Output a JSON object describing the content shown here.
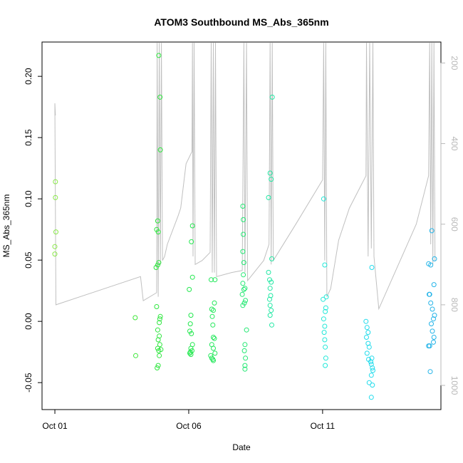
{
  "chart_data": {
    "type": "scatter",
    "title": "ATOM3 Southbound MS_Abs_365nm",
    "xlabel": "Date",
    "ylabel": "MS_Abs_365nm",
    "x_ticks": [
      "Oct 01",
      "Oct 06",
      "Oct 11"
    ],
    "y_ticks": [
      -0.05,
      0.0,
      0.05,
      0.1,
      0.15,
      0.2
    ],
    "y_range": [
      -0.072,
      0.228
    ],
    "x_range_days": [
      -0.48,
      14.42
    ],
    "y2_ticks": [
      200,
      400,
      600,
      800,
      1000
    ],
    "y2_range": [
      1060,
      148
    ],
    "colors": {
      "axis": "#000000",
      "track": "#c0c0c0",
      "axis2": "#b8b8b8"
    },
    "points": [
      {
        "x": 0.02,
        "y": 0.114,
        "color": "#8be94a"
      },
      {
        "x": 0.02,
        "y": 0.101,
        "color": "#8be94a"
      },
      {
        "x": 0.04,
        "y": 0.073,
        "color": "#8be94a"
      },
      {
        "x": 0.0,
        "y": 0.061,
        "color": "#8be94a"
      },
      {
        "x": 0.0,
        "y": 0.055,
        "color": "#8be94a"
      },
      {
        "x": 3.0,
        "y": 0.003,
        "color": "#3ee63a"
      },
      {
        "x": 3.02,
        "y": -0.028,
        "color": "#3ee63a"
      },
      {
        "x": 3.88,
        "y": 0.217,
        "color": "#2fe63f"
      },
      {
        "x": 3.93,
        "y": 0.183,
        "color": "#2fe63f"
      },
      {
        "x": 3.94,
        "y": 0.14,
        "color": "#2fe63f"
      },
      {
        "x": 3.84,
        "y": 0.082,
        "color": "#2fe63f"
      },
      {
        "x": 3.8,
        "y": 0.075,
        "color": "#2fe63f"
      },
      {
        "x": 3.86,
        "y": 0.073,
        "color": "#2fe63f"
      },
      {
        "x": 3.88,
        "y": 0.048,
        "color": "#2fe63f"
      },
      {
        "x": 3.84,
        "y": 0.046,
        "color": "#2fe63f"
      },
      {
        "x": 3.78,
        "y": 0.044,
        "color": "#2fe63f"
      },
      {
        "x": 3.8,
        "y": 0.012,
        "color": "#2fe63f"
      },
      {
        "x": 3.94,
        "y": 0.004,
        "color": "#2fe63f"
      },
      {
        "x": 3.92,
        "y": 0.002,
        "color": "#2fe63f"
      },
      {
        "x": 3.9,
        "y": -0.001,
        "color": "#2fe63f"
      },
      {
        "x": 3.84,
        "y": -0.007,
        "color": "#2fe63f"
      },
      {
        "x": 3.9,
        "y": -0.012,
        "color": "#2fe63f"
      },
      {
        "x": 3.86,
        "y": -0.015,
        "color": "#2fe63f"
      },
      {
        "x": 3.92,
        "y": -0.019,
        "color": "#2fe63f"
      },
      {
        "x": 3.84,
        "y": -0.022,
        "color": "#2fe63f"
      },
      {
        "x": 3.96,
        "y": -0.023,
        "color": "#2fe63f"
      },
      {
        "x": 3.88,
        "y": -0.024,
        "color": "#2fe63f"
      },
      {
        "x": 3.9,
        "y": -0.028,
        "color": "#2fe63f"
      },
      {
        "x": 3.86,
        "y": -0.036,
        "color": "#2fe63f"
      },
      {
        "x": 3.82,
        "y": -0.038,
        "color": "#2fe63f"
      },
      {
        "x": 5.14,
        "y": 0.078,
        "color": "#22e84e"
      },
      {
        "x": 5.1,
        "y": 0.065,
        "color": "#22e84e"
      },
      {
        "x": 5.14,
        "y": 0.036,
        "color": "#22e84e"
      },
      {
        "x": 5.02,
        "y": 0.026,
        "color": "#22e84e"
      },
      {
        "x": 5.08,
        "y": 0.005,
        "color": "#22e84e"
      },
      {
        "x": 5.06,
        "y": -0.002,
        "color": "#22e84e"
      },
      {
        "x": 5.04,
        "y": -0.008,
        "color": "#22e84e"
      },
      {
        "x": 5.1,
        "y": -0.01,
        "color": "#22e84e"
      },
      {
        "x": 5.14,
        "y": -0.019,
        "color": "#22e84e"
      },
      {
        "x": 5.08,
        "y": -0.022,
        "color": "#22e84e"
      },
      {
        "x": 5.12,
        "y": -0.024,
        "color": "#22e84e"
      },
      {
        "x": 5.06,
        "y": -0.025,
        "color": "#22e84e"
      },
      {
        "x": 5.04,
        "y": -0.026,
        "color": "#22e84e"
      },
      {
        "x": 5.08,
        "y": -0.027,
        "color": "#22e84e"
      },
      {
        "x": 5.84,
        "y": 0.034,
        "color": "#22e85a"
      },
      {
        "x": 5.98,
        "y": 0.034,
        "color": "#22e85a"
      },
      {
        "x": 5.96,
        "y": 0.015,
        "color": "#22e85a"
      },
      {
        "x": 5.86,
        "y": 0.01,
        "color": "#22e85a"
      },
      {
        "x": 5.92,
        "y": 0.009,
        "color": "#22e85a"
      },
      {
        "x": 5.88,
        "y": 0.004,
        "color": "#22e85a"
      },
      {
        "x": 5.9,
        "y": -0.003,
        "color": "#22e85a"
      },
      {
        "x": 5.92,
        "y": -0.013,
        "color": "#22e85a"
      },
      {
        "x": 5.96,
        "y": -0.014,
        "color": "#22e85a"
      },
      {
        "x": 5.86,
        "y": -0.019,
        "color": "#22e85a"
      },
      {
        "x": 5.92,
        "y": -0.022,
        "color": "#22e85a"
      },
      {
        "x": 5.98,
        "y": -0.026,
        "color": "#22e85a"
      },
      {
        "x": 5.82,
        "y": -0.028,
        "color": "#22e85a"
      },
      {
        "x": 5.86,
        "y": -0.03,
        "color": "#22e85a"
      },
      {
        "x": 5.9,
        "y": -0.031,
        "color": "#22e85a"
      },
      {
        "x": 5.92,
        "y": -0.032,
        "color": "#22e85a"
      },
      {
        "x": 7.02,
        "y": 0.094,
        "color": "#22e872"
      },
      {
        "x": 7.04,
        "y": 0.083,
        "color": "#22e872"
      },
      {
        "x": 7.04,
        "y": 0.071,
        "color": "#22e872"
      },
      {
        "x": 7.02,
        "y": 0.057,
        "color": "#22e872"
      },
      {
        "x": 7.06,
        "y": 0.048,
        "color": "#22e872"
      },
      {
        "x": 7.04,
        "y": 0.038,
        "color": "#22e872"
      },
      {
        "x": 7.02,
        "y": 0.031,
        "color": "#22e872"
      },
      {
        "x": 7.1,
        "y": 0.027,
        "color": "#22e872"
      },
      {
        "x": 7.06,
        "y": 0.026,
        "color": "#22e872"
      },
      {
        "x": 7.0,
        "y": 0.022,
        "color": "#22e872"
      },
      {
        "x": 7.12,
        "y": 0.017,
        "color": "#22e872"
      },
      {
        "x": 7.08,
        "y": 0.015,
        "color": "#22e872"
      },
      {
        "x": 7.02,
        "y": 0.013,
        "color": "#22e872"
      },
      {
        "x": 7.16,
        "y": -0.007,
        "color": "#22e872"
      },
      {
        "x": 7.1,
        "y": -0.019,
        "color": "#22e872"
      },
      {
        "x": 7.08,
        "y": -0.024,
        "color": "#22e872"
      },
      {
        "x": 7.12,
        "y": -0.03,
        "color": "#22e872"
      },
      {
        "x": 7.1,
        "y": -0.036,
        "color": "#22e872"
      },
      {
        "x": 7.1,
        "y": -0.039,
        "color": "#22e872"
      },
      {
        "x": 8.12,
        "y": 0.183,
        "color": "#22e8a4"
      },
      {
        "x": 8.04,
        "y": 0.121,
        "color": "#22e8a4"
      },
      {
        "x": 8.08,
        "y": 0.116,
        "color": "#22e8a4"
      },
      {
        "x": 7.98,
        "y": 0.101,
        "color": "#22e8a4"
      },
      {
        "x": 8.1,
        "y": 0.051,
        "color": "#22e8a4"
      },
      {
        "x": 7.98,
        "y": 0.04,
        "color": "#22e8a4"
      },
      {
        "x": 8.02,
        "y": 0.034,
        "color": "#22e8a4"
      },
      {
        "x": 8.08,
        "y": 0.032,
        "color": "#22e8a4"
      },
      {
        "x": 8.04,
        "y": 0.027,
        "color": "#22e8a4"
      },
      {
        "x": 8.06,
        "y": 0.021,
        "color": "#22e8a4"
      },
      {
        "x": 8.02,
        "y": 0.018,
        "color": "#22e8a4"
      },
      {
        "x": 8.04,
        "y": 0.013,
        "color": "#22e8a4"
      },
      {
        "x": 8.08,
        "y": 0.009,
        "color": "#22e8a4"
      },
      {
        "x": 8.04,
        "y": 0.005,
        "color": "#22e8a4"
      },
      {
        "x": 8.1,
        "y": -0.003,
        "color": "#22e8a4"
      },
      {
        "x": 10.04,
        "y": 0.1,
        "color": "#22e8d8"
      },
      {
        "x": 10.08,
        "y": 0.046,
        "color": "#22e8d8"
      },
      {
        "x": 10.14,
        "y": 0.02,
        "color": "#22e8d8"
      },
      {
        "x": 10.02,
        "y": 0.018,
        "color": "#22e8d8"
      },
      {
        "x": 10.12,
        "y": 0.011,
        "color": "#22e8d8"
      },
      {
        "x": 10.1,
        "y": 0.008,
        "color": "#22e8d8"
      },
      {
        "x": 10.04,
        "y": 0.002,
        "color": "#22e8d8"
      },
      {
        "x": 10.08,
        "y": -0.004,
        "color": "#22e8d8"
      },
      {
        "x": 10.06,
        "y": -0.009,
        "color": "#22e8d8"
      },
      {
        "x": 10.08,
        "y": -0.015,
        "color": "#22e8d8"
      },
      {
        "x": 10.1,
        "y": -0.021,
        "color": "#22e8d8"
      },
      {
        "x": 10.12,
        "y": -0.03,
        "color": "#22e8d8"
      },
      {
        "x": 10.1,
        "y": -0.036,
        "color": "#22e8d8"
      },
      {
        "x": 11.84,
        "y": 0.044,
        "color": "#22dcec"
      },
      {
        "x": 11.62,
        "y": 0.0,
        "color": "#22dcec"
      },
      {
        "x": 11.66,
        "y": -0.005,
        "color": "#22dcec"
      },
      {
        "x": 11.7,
        "y": -0.009,
        "color": "#22dcec"
      },
      {
        "x": 11.64,
        "y": -0.013,
        "color": "#22dcec"
      },
      {
        "x": 11.7,
        "y": -0.018,
        "color": "#22dcec"
      },
      {
        "x": 11.74,
        "y": -0.021,
        "color": "#22dcec"
      },
      {
        "x": 11.66,
        "y": -0.026,
        "color": "#22dcec"
      },
      {
        "x": 11.84,
        "y": -0.03,
        "color": "#22dcec"
      },
      {
        "x": 11.72,
        "y": -0.031,
        "color": "#22dcec"
      },
      {
        "x": 11.8,
        "y": -0.033,
        "color": "#22dcec"
      },
      {
        "x": 11.82,
        "y": -0.035,
        "color": "#22dcec"
      },
      {
        "x": 11.86,
        "y": -0.038,
        "color": "#22dcec"
      },
      {
        "x": 11.88,
        "y": -0.04,
        "color": "#22dcec"
      },
      {
        "x": 11.82,
        "y": -0.044,
        "color": "#22dcec"
      },
      {
        "x": 11.74,
        "y": -0.05,
        "color": "#22dcec"
      },
      {
        "x": 11.86,
        "y": -0.052,
        "color": "#22dcec"
      },
      {
        "x": 11.82,
        "y": -0.062,
        "color": "#22dcec"
      },
      {
        "x": 14.08,
        "y": 0.074,
        "color": "#24b4e8"
      },
      {
        "x": 14.18,
        "y": 0.051,
        "color": "#24b4e8"
      },
      {
        "x": 13.96,
        "y": 0.047,
        "color": "#24b4e8"
      },
      {
        "x": 14.04,
        "y": 0.046,
        "color": "#24b4e8"
      },
      {
        "x": 14.16,
        "y": 0.03,
        "color": "#24b4e8"
      },
      {
        "x": 13.98,
        "y": 0.022,
        "color": "#24b4e8"
      },
      {
        "x": 14.0,
        "y": 0.022,
        "color": "#24b4e8"
      },
      {
        "x": 14.04,
        "y": 0.015,
        "color": "#24b4e8"
      },
      {
        "x": 14.1,
        "y": 0.01,
        "color": "#24b4e8"
      },
      {
        "x": 14.18,
        "y": 0.005,
        "color": "#24b4e8"
      },
      {
        "x": 14.14,
        "y": 0.002,
        "color": "#24b4e8"
      },
      {
        "x": 14.06,
        "y": -0.002,
        "color": "#24b4e8"
      },
      {
        "x": 14.1,
        "y": -0.008,
        "color": "#24b4e8"
      },
      {
        "x": 14.16,
        "y": -0.013,
        "color": "#24b4e8"
      },
      {
        "x": 14.14,
        "y": -0.017,
        "color": "#24b4e8"
      },
      {
        "x": 13.96,
        "y": -0.02,
        "color": "#24b4e8"
      },
      {
        "x": 14.0,
        "y": -0.02,
        "color": "#24b4e8"
      },
      {
        "x": 14.02,
        "y": -0.041,
        "color": "#24b4e8"
      }
    ],
    "track": [
      [
        0.02,
        330
      ],
      [
        0.0,
        300
      ],
      [
        0.04,
        800
      ],
      [
        3.2,
        730
      ],
      [
        3.3,
        790
      ],
      [
        3.8,
        770
      ],
      [
        3.82,
        150
      ],
      [
        3.86,
        780
      ],
      [
        3.9,
        150
      ],
      [
        3.94,
        700
      ],
      [
        3.98,
        150
      ],
      [
        4.02,
        690
      ],
      [
        4.1,
        680
      ],
      [
        4.2,
        650
      ],
      [
        4.6,
        580
      ],
      [
        4.7,
        560
      ],
      [
        4.9,
        450
      ],
      [
        5.12,
        420
      ],
      [
        5.14,
        150
      ],
      [
        5.16,
        680
      ],
      [
        5.2,
        150
      ],
      [
        5.24,
        700
      ],
      [
        5.5,
        690
      ],
      [
        5.8,
        670
      ],
      [
        5.84,
        150
      ],
      [
        5.88,
        720
      ],
      [
        5.92,
        150
      ],
      [
        5.96,
        720
      ],
      [
        6.0,
        150
      ],
      [
        6.04,
        730
      ],
      [
        6.6,
        720
      ],
      [
        7.0,
        715
      ],
      [
        7.06,
        150
      ],
      [
        7.1,
        720
      ],
      [
        7.16,
        150
      ],
      [
        7.2,
        740
      ],
      [
        7.8,
        690
      ],
      [
        8.0,
        650
      ],
      [
        8.04,
        150
      ],
      [
        8.08,
        700
      ],
      [
        8.12,
        150
      ],
      [
        8.16,
        690
      ],
      [
        9.0,
        600
      ],
      [
        10.0,
        490
      ],
      [
        10.04,
        150
      ],
      [
        10.08,
        690
      ],
      [
        10.12,
        150
      ],
      [
        10.16,
        780
      ],
      [
        10.3,
        760
      ],
      [
        10.6,
        640
      ],
      [
        11.0,
        560
      ],
      [
        11.62,
        480
      ],
      [
        11.64,
        150
      ],
      [
        11.7,
        680
      ],
      [
        11.76,
        150
      ],
      [
        11.82,
        660
      ],
      [
        11.88,
        150
      ],
      [
        11.92,
        680
      ],
      [
        12.1,
        810
      ],
      [
        13.5,
        600
      ],
      [
        13.96,
        480
      ],
      [
        14.0,
        150
      ],
      [
        14.04,
        650
      ],
      [
        14.08,
        150
      ],
      [
        14.12,
        700
      ],
      [
        14.16,
        150
      ],
      [
        14.2,
        690
      ]
    ]
  }
}
